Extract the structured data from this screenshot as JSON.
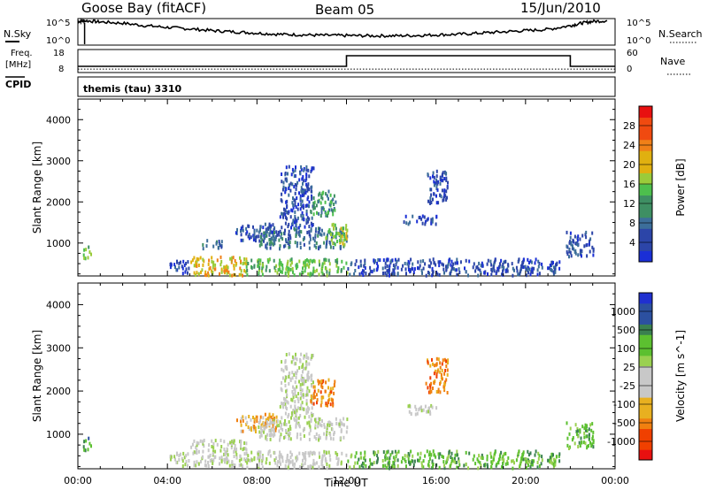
{
  "header": {
    "station": "Goose Bay (fitACF)",
    "beam": "Beam 05",
    "date": "15/Jun/2010"
  },
  "top_panels": {
    "nsky_label": "N.Sky",
    "nsky_ticks": [
      "10^5",
      "10^0"
    ],
    "nsearch_label": "N.Search",
    "nsearch_ticks": [
      "10^5",
      "10^0"
    ],
    "freq_label_1": "Freq.",
    "freq_label_2": "[MHz]",
    "freq_ticks": [
      "18",
      "8"
    ],
    "nave_label": "Nave",
    "nave_ticks": [
      "60",
      "0"
    ],
    "cpid_label": "CPID",
    "cpid_value": "themis (tau) 3310"
  },
  "colors": {
    "power_scale": [
      "#1a2fd6",
      "#2c45a8",
      "#3c6e9a",
      "#3e8f63",
      "#4dbf4d",
      "#9acb3a",
      "#e0b010",
      "#f08018",
      "#f04a10",
      "#e81010"
    ],
    "velocity_scale": [
      "#2030d0",
      "#2c50a0",
      "#3a8050",
      "#5cc030",
      "#9ad050",
      "#c8c8c8",
      "#c8c8c8",
      "#e8b020",
      "#f08010",
      "#f04000",
      "#e81010"
    ]
  },
  "chart_data": [
    {
      "type": "line",
      "title": "N.Sky / N.Search",
      "x_unit": "hours UT",
      "x": [
        0,
        0.3,
        1,
        2,
        3,
        4,
        5,
        6,
        7,
        8,
        9,
        10,
        11,
        12,
        13,
        14,
        15,
        16,
        17,
        18,
        19,
        20,
        21,
        22,
        22.5,
        23,
        23.7
      ],
      "y_fraction_of_range": [
        0.92,
        0.95,
        0.9,
        0.85,
        0.75,
        0.68,
        0.62,
        0.55,
        0.5,
        0.45,
        0.4,
        0.38,
        0.36,
        0.35,
        0.34,
        0.34,
        0.35,
        0.38,
        0.4,
        0.45,
        0.5,
        0.55,
        0.6,
        0.75,
        0.85,
        0.92,
        0.95
      ]
    },
    {
      "type": "line",
      "title": "Frequency / Nave",
      "x_unit": "hours UT",
      "ylabel": "Freq. [MHz]",
      "ylim": [
        8,
        18
      ],
      "frequency_mhz": [
        {
          "x0": 0,
          "x1": 12,
          "y": 10.5
        },
        {
          "x0": 12,
          "x1": 22,
          "y": 15.5
        },
        {
          "x0": 22,
          "x1": 24,
          "y": 10.5
        }
      ],
      "nave_level_fraction": 0.12
    },
    {
      "type": "heatmap",
      "title": "Power",
      "xlabel": "",
      "ylabel": "Slant Range [km]",
      "xlim": [
        0,
        24
      ],
      "ylim": [
        200,
        4500
      ],
      "xticks": [
        "00:00",
        "04:00",
        "08:00",
        "12:00",
        "16:00",
        "20:00",
        "00:00"
      ],
      "yticks": [
        1000,
        2000,
        3000,
        4000
      ],
      "colorbar_label": "Power [dB]",
      "colorbar_ticks": [
        "28",
        "24",
        "20",
        "16",
        "12",
        "8",
        "4"
      ],
      "blobs": [
        {
          "t0": 0.2,
          "t1": 0.6,
          "r0": 650,
          "r1": 950,
          "level": 4
        },
        {
          "t0": 4.0,
          "t1": 5.0,
          "r0": 300,
          "r1": 600,
          "level": 1
        },
        {
          "t0": 5.0,
          "t1": 7.5,
          "r0": 250,
          "r1": 700,
          "level": 6
        },
        {
          "t0": 5.5,
          "t1": 6.5,
          "r0": 900,
          "r1": 1100,
          "level": 2
        },
        {
          "t0": 7.5,
          "t1": 12,
          "r0": 250,
          "r1": 650,
          "level": 4
        },
        {
          "t0": 7.0,
          "t1": 9.0,
          "r0": 1100,
          "r1": 1500,
          "level": 1
        },
        {
          "t0": 8.0,
          "t1": 12,
          "r0": 900,
          "r1": 1400,
          "level": 2
        },
        {
          "t0": 9.0,
          "t1": 10.5,
          "r0": 1400,
          "r1": 2900,
          "level": 1
        },
        {
          "t0": 10.3,
          "t1": 11.5,
          "r0": 1700,
          "r1": 2300,
          "level": 3
        },
        {
          "t0": 11.0,
          "t1": 12.0,
          "r0": 1000,
          "r1": 1500,
          "level": 5
        },
        {
          "t0": 12,
          "t1": 21.5,
          "r0": 250,
          "r1": 650,
          "level": 1
        },
        {
          "t0": 14.5,
          "t1": 16,
          "r0": 1500,
          "r1": 1700,
          "level": 1
        },
        {
          "t0": 15.5,
          "t1": 16.5,
          "r0": 2000,
          "r1": 2800,
          "level": 1
        },
        {
          "t0": 21.8,
          "t1": 23,
          "r0": 700,
          "r1": 1300,
          "level": 1
        }
      ]
    },
    {
      "type": "heatmap",
      "title": "Velocity",
      "xlabel": "Time UT",
      "ylabel": "Slant Range [km]",
      "xlim": [
        0,
        24
      ],
      "ylim": [
        200,
        4500
      ],
      "xticks": [
        "00:00",
        "04:00",
        "08:00",
        "12:00",
        "16:00",
        "20:00",
        "00:00"
      ],
      "yticks": [
        1000,
        2000,
        3000,
        4000
      ],
      "colorbar_label": "Velocity [m s^-1]",
      "colorbar_ticks": [
        "1000",
        "500",
        "100",
        "25",
        "-25",
        "-100",
        "-500",
        "-1000"
      ],
      "blobs": [
        {
          "t0": 0.2,
          "t1": 0.6,
          "r0": 650,
          "r1": 950,
          "level": 2
        },
        {
          "t0": 4.0,
          "t1": 5.0,
          "r0": 300,
          "r1": 600,
          "level": 5
        },
        {
          "t0": 5.0,
          "t1": 7.5,
          "r0": 300,
          "r1": 900,
          "level": 5
        },
        {
          "t0": 7.5,
          "t1": 12,
          "r0": 250,
          "r1": 650,
          "level": 5
        },
        {
          "t0": 7.0,
          "t1": 9.0,
          "r0": 1100,
          "r1": 1500,
          "level": 7
        },
        {
          "t0": 8.0,
          "t1": 12,
          "r0": 900,
          "r1": 1400,
          "level": 5
        },
        {
          "t0": 9.0,
          "t1": 10.5,
          "r0": 1400,
          "r1": 2900,
          "level": 5
        },
        {
          "t0": 10.3,
          "t1": 11.5,
          "r0": 1700,
          "r1": 2300,
          "level": 8
        },
        {
          "t0": 12,
          "t1": 21.5,
          "r0": 250,
          "r1": 650,
          "level": 3
        },
        {
          "t0": 14.5,
          "t1": 16,
          "r0": 1500,
          "r1": 1700,
          "level": 5
        },
        {
          "t0": 15.5,
          "t1": 16.5,
          "r0": 2000,
          "r1": 2800,
          "level": 8
        },
        {
          "t0": 21.8,
          "t1": 23,
          "r0": 700,
          "r1": 1300,
          "level": 3
        }
      ]
    }
  ]
}
